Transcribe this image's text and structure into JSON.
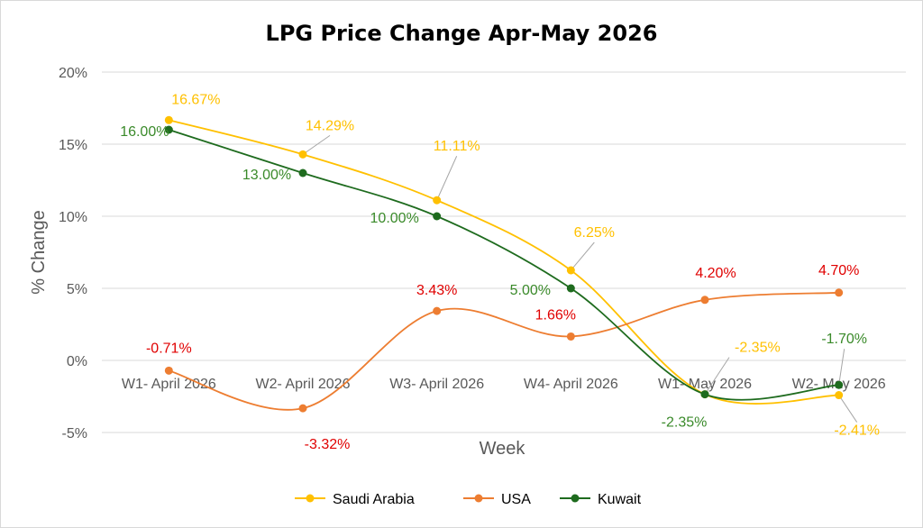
{
  "chart_data": {
    "type": "line",
    "title": "LPG Price Change Apr-May 2026",
    "xlabel": "Week",
    "ylabel": "% Change",
    "ylim": [
      -5,
      20
    ],
    "yticks": [
      "-5%",
      "0%",
      "5%",
      "10%",
      "15%",
      "20%"
    ],
    "ytick_values": [
      -5,
      0,
      5,
      10,
      15,
      20
    ],
    "categories": [
      "W1- April 2026",
      "W2- April 2026",
      "W3- April 2026",
      "W4- April 2026",
      "W1- May 2026",
      "W2- May 2026"
    ],
    "grid": true,
    "legend": "bottom",
    "series": [
      {
        "name": "Saudi Arabia",
        "color": "#FFC000",
        "labelColor": "#FFC000",
        "values": [
          16.67,
          14.29,
          11.11,
          6.25,
          -2.35,
          -2.41
        ],
        "labels": [
          "16.67%",
          "14.29%",
          "11.11%",
          "6.25%",
          "-2.35%",
          "-2.41%"
        ]
      },
      {
        "name": "USA",
        "color": "#ED7D31",
        "labelColor": "#E00000",
        "values": [
          -0.71,
          -3.32,
          3.43,
          1.66,
          4.2,
          4.7
        ],
        "labels": [
          "-0.71%",
          "-3.32%",
          "3.43%",
          "1.66%",
          "4.20%",
          "4.70%"
        ]
      },
      {
        "name": "Kuwait",
        "color": "#1E6B1E",
        "labelColor": "#3A8A2A",
        "values": [
          16.0,
          13.0,
          10.0,
          5.0,
          -2.35,
          -1.7
        ],
        "labels": [
          "16.00%",
          "13.00%",
          "10.00%",
          "5.00%",
          "-2.35%",
          "-1.70%"
        ]
      }
    ]
  }
}
